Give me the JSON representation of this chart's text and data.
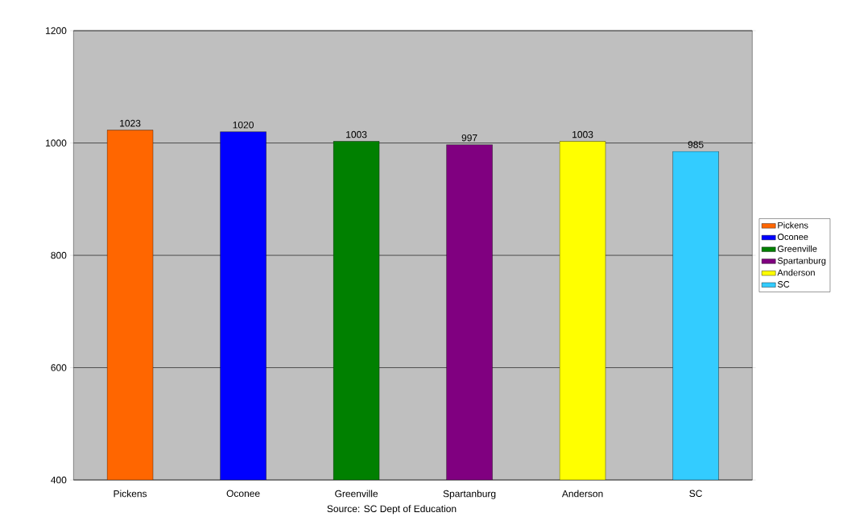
{
  "chart_data": {
    "type": "bar",
    "categories": [
      "Pickens",
      "Oconee",
      "Greenville",
      "Spartanburg",
      "Anderson",
      "SC"
    ],
    "series": [
      {
        "name": "Pickens",
        "color": "#ff6600",
        "values": [
          1023,
          null,
          null,
          null,
          null,
          null
        ]
      },
      {
        "name": "Oconee",
        "color": "#0000ff",
        "values": [
          null,
          1020,
          null,
          null,
          null,
          null
        ]
      },
      {
        "name": "Greenville",
        "color": "#008000",
        "values": [
          null,
          null,
          1003,
          null,
          null,
          null
        ]
      },
      {
        "name": "Spartanburg",
        "color": "#800080",
        "values": [
          null,
          null,
          null,
          997,
          null,
          null
        ]
      },
      {
        "name": "Anderson",
        "color": "#ffff00",
        "values": [
          null,
          null,
          null,
          null,
          1003,
          null
        ]
      },
      {
        "name": "SC",
        "color": "#33ccff",
        "values": [
          null,
          null,
          null,
          null,
          null,
          985
        ]
      }
    ],
    "ylim": [
      400,
      1200
    ],
    "yticks": [
      400,
      600,
      800,
      1000,
      1200
    ],
    "grid": "y",
    "legend": "right",
    "data_labels": true,
    "annotations": [
      "Source:  SC Dept of Education"
    ]
  }
}
